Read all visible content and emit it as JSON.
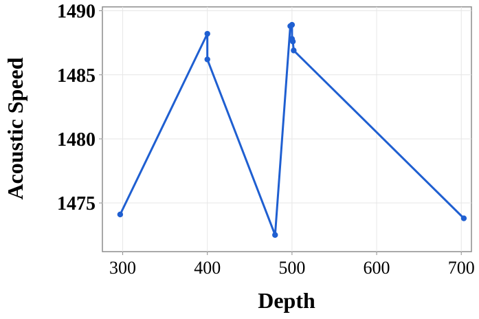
{
  "chart_data": {
    "type": "line",
    "title": "",
    "xlabel": "Depth",
    "ylabel": "Acoustic Speed",
    "xlim": [
      276,
      712
    ],
    "ylim": [
      1471.2,
      1490.3
    ],
    "xticks": [
      300,
      400,
      500,
      600,
      700
    ],
    "yticks": [
      1475,
      1480,
      1485,
      1490
    ],
    "xtick_labels": [
      "300",
      "400",
      "500",
      "600",
      "700"
    ],
    "ytick_labels": [
      "1475",
      "1480",
      "1485",
      "1490"
    ],
    "grid": true,
    "legend": "none",
    "series": [
      {
        "color": "#1f5fd1",
        "points": [
          {
            "x": 297,
            "y": 1474.1
          },
          {
            "x": 400,
            "y": 1488.2
          },
          {
            "x": 400,
            "y": 1486.2
          },
          {
            "x": 480,
            "y": 1472.5
          },
          {
            "x": 498,
            "y": 1488.8
          },
          {
            "x": 500,
            "y": 1488.9
          },
          {
            "x": 500,
            "y": 1487.8
          },
          {
            "x": 501,
            "y": 1487.6
          },
          {
            "x": 502,
            "y": 1486.9
          },
          {
            "x": 703,
            "y": 1473.8
          }
        ]
      }
    ]
  }
}
